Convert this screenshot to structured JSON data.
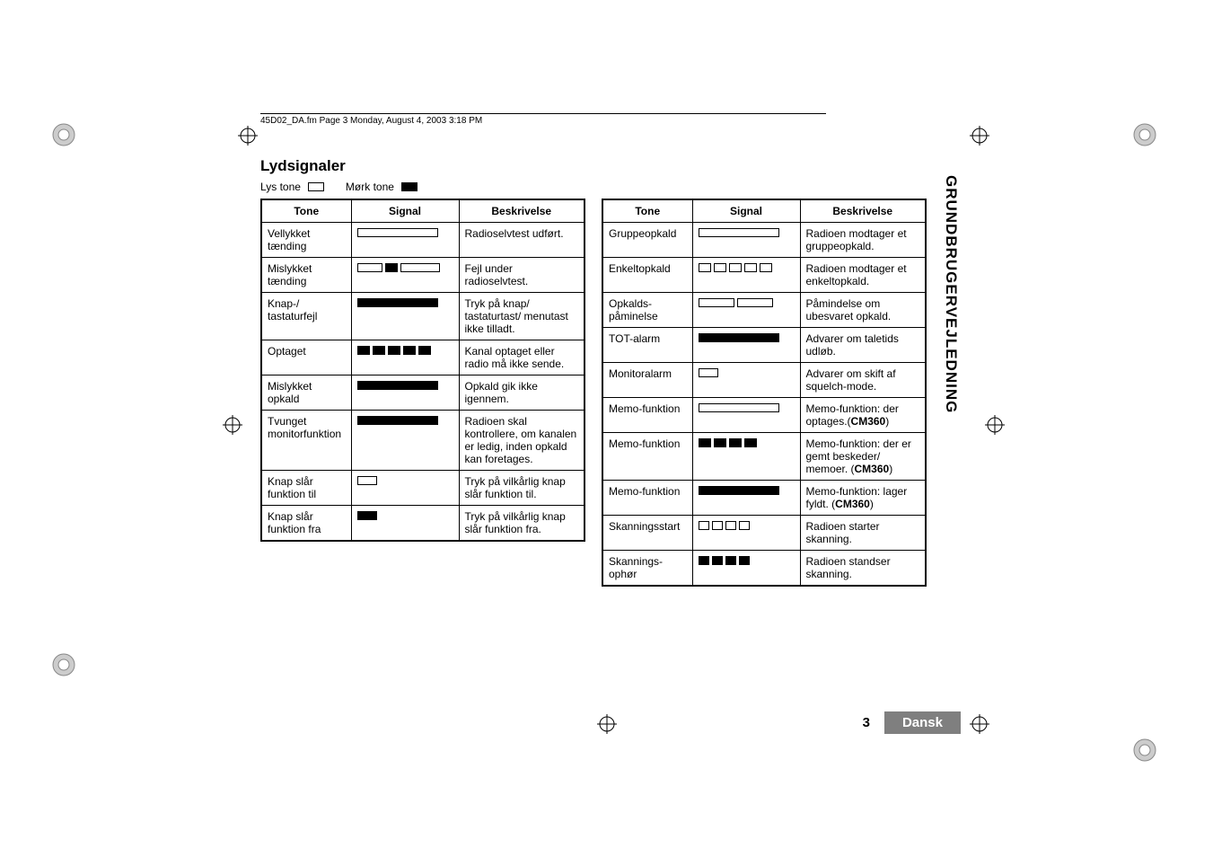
{
  "header_line": "45D02_DA.fm  Page 3  Monday, August 4, 2003  3:18 PM",
  "section_title": "Lydsignaler",
  "legend": {
    "light": "Lys tone",
    "dark": "Mørk tone"
  },
  "table_headers": {
    "tone": "Tone",
    "signal": "Signal",
    "desc": "Beskrivelse"
  },
  "colors": {
    "light": "#ffffff",
    "dark": "#000000",
    "tab_bg": "#7f7f7f",
    "tab_fg": "#ffffff"
  },
  "left_rows": [
    {
      "tone": "Vellykket tænding",
      "pattern": [
        [
          "light",
          90
        ]
      ],
      "desc": "Radioselvtest udført."
    },
    {
      "tone": "Mislykket tænding",
      "pattern": [
        [
          "light",
          28
        ],
        [
          "dark",
          14
        ],
        [
          "light",
          44
        ]
      ],
      "desc": "Fejl under radioselvtest."
    },
    {
      "tone": "Knap-/ tastaturfejl",
      "pattern": [
        [
          "dark",
          90
        ]
      ],
      "desc": "Tryk på knap/ tastaturtast/ menutast ikke tilladt."
    },
    {
      "tone": "Optaget",
      "pattern": [
        [
          "dark",
          14
        ],
        [
          "dark",
          14
        ],
        [
          "dark",
          14
        ],
        [
          "dark",
          14
        ],
        [
          "dark",
          14
        ]
      ],
      "desc": "Kanal optaget eller radio må ikke sende."
    },
    {
      "tone": "Mislykket opkald",
      "pattern": [
        [
          "dark",
          90
        ]
      ],
      "desc": "Opkald gik ikke igennem."
    },
    {
      "tone": "Tvunget monitorfunktion",
      "pattern": [
        [
          "dark",
          90
        ]
      ],
      "desc": "Radioen skal kontrollere, om kanalen er ledig, inden opkald kan foretages."
    },
    {
      "tone": "Knap slår funktion til",
      "pattern": [
        [
          "light",
          22
        ]
      ],
      "desc": "Tryk på vilkårlig knap slår funktion til."
    },
    {
      "tone": "Knap slår funktion fra",
      "pattern": [
        [
          "dark",
          22
        ]
      ],
      "desc": "Tryk på vilkårlig knap slår funktion fra."
    }
  ],
  "right_rows": [
    {
      "tone": "Gruppeopkald",
      "pattern": [
        [
          "light",
          90
        ]
      ],
      "desc": "Radioen modtager et gruppeopkald."
    },
    {
      "tone": "Enkeltopkald",
      "pattern": [
        [
          "light",
          14
        ],
        [
          "light",
          14
        ],
        [
          "light",
          14
        ],
        [
          "light",
          14
        ],
        [
          "light",
          14
        ]
      ],
      "desc": "Radioen modtager et enkeltopkald."
    },
    {
      "tone": "Opkalds-påminelse",
      "pattern": [
        [
          "light",
          40
        ],
        [
          "light",
          40
        ]
      ],
      "desc": "Påmindelse om ubesvaret opkald."
    },
    {
      "tone": "TOT-alarm",
      "pattern": [
        [
          "dark",
          90
        ]
      ],
      "desc": "Advarer om taletids udløb."
    },
    {
      "tone": "Monitoralarm",
      "pattern": [
        [
          "light",
          22
        ]
      ],
      "desc": "Advarer om skift af squelch-mode."
    },
    {
      "tone": "Memo-funktion",
      "pattern": [
        [
          "light",
          90
        ]
      ],
      "desc_html": "Memo-funktion: der optages.(<b>CM360</b>)"
    },
    {
      "tone": "Memo-funktion",
      "pattern": [
        [
          "dark",
          14
        ],
        [
          "dark",
          14
        ],
        [
          "dark",
          14
        ],
        [
          "dark",
          14
        ]
      ],
      "desc_html": "Memo-funktion: der er gemt beskeder/ memoer. (<b>CM360</b>)"
    },
    {
      "tone": "Memo-funktion",
      "pattern": [
        [
          "dark",
          90
        ]
      ],
      "desc_html": "Memo-funktion: lager fyldt. (<b>CM360</b>)"
    },
    {
      "tone": "Skanningsstart",
      "pattern": [
        [
          "light",
          12
        ],
        [
          "light",
          12
        ],
        [
          "light",
          12
        ],
        [
          "light",
          12
        ]
      ],
      "desc": "Radioen starter skanning."
    },
    {
      "tone": "Skannings-ophør",
      "pattern": [
        [
          "dark",
          12
        ],
        [
          "dark",
          12
        ],
        [
          "dark",
          12
        ],
        [
          "dark",
          12
        ]
      ],
      "desc": "Radioen standser skanning."
    }
  ],
  "sidebar": "GRUNDBRUGERVEJLEDNING",
  "footer": {
    "page": "3",
    "lang": "Dansk"
  }
}
